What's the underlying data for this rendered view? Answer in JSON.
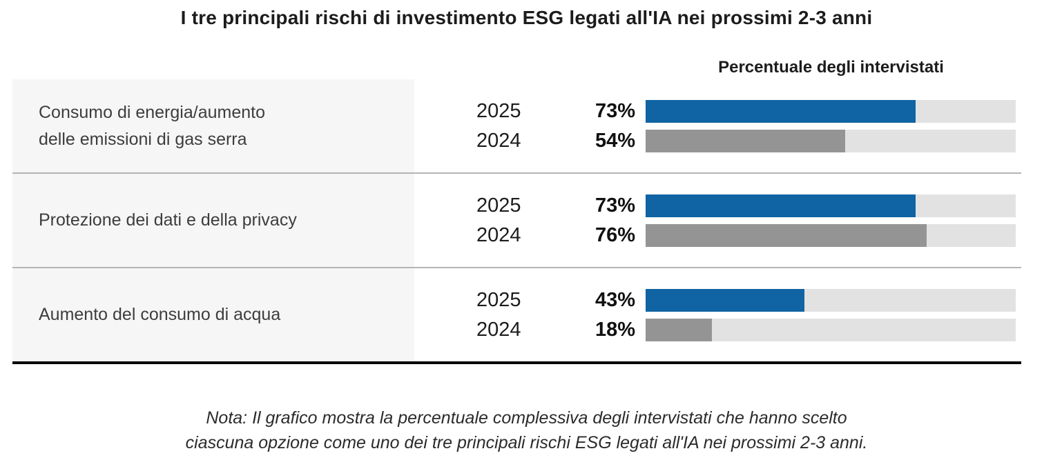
{
  "title": "I tre principali rischi di investimento ESG legati all'IA nei prossimi 2-3 anni",
  "axis_header": "Percentuale degli intervistati",
  "note": "Nota: Il grafico mostra la percentuale complessiva degli intervistati che hanno scelto\nciascuna opzione come uno dei tre principali rischi ESG legati all'IA nei prossimi 2-3 anni.",
  "colors": {
    "bar_2025": "#1064a3",
    "bar_2024": "#949494",
    "bar_track": "#e2e2e2",
    "row_label_bg": "#f6f6f6",
    "divider": "#b4b4b4",
    "baseline": "#000000"
  },
  "chart_data": {
    "type": "bar",
    "orientation": "horizontal",
    "title": "I tre principali rischi di investimento ESG legati all'IA nei prossimi 2-3 anni",
    "value_axis_label": "Percentuale degli intervistati",
    "unit": "%",
    "value_range": [
      0,
      100
    ],
    "grid": false,
    "categories": [
      "Consumo di energia/aumento delle emissioni di gas serra",
      "Protezione dei dati e della privacy",
      "Aumento del consumo di acqua"
    ],
    "series": [
      {
        "name": "2025",
        "values": [
          73,
          73,
          43
        ],
        "color": "#1064a3"
      },
      {
        "name": "2024",
        "values": [
          54,
          76,
          18
        ],
        "color": "#949494"
      }
    ],
    "rows": [
      {
        "label": "Consumo di energia/aumento\ndelle emissioni di gas serra",
        "bars": [
          {
            "year": "2025",
            "value": 73,
            "value_label": "73%"
          },
          {
            "year": "2024",
            "value": 54,
            "value_label": "54%"
          }
        ]
      },
      {
        "label": "Protezione dei dati e della privacy",
        "bars": [
          {
            "year": "2025",
            "value": 73,
            "value_label": "73%"
          },
          {
            "year": "2024",
            "value": 76,
            "value_label": "76%"
          }
        ]
      },
      {
        "label": "Aumento del consumo di acqua",
        "bars": [
          {
            "year": "2025",
            "value": 43,
            "value_label": "43%"
          },
          {
            "year": "2024",
            "value": 18,
            "value_label": "18%"
          }
        ]
      }
    ]
  }
}
